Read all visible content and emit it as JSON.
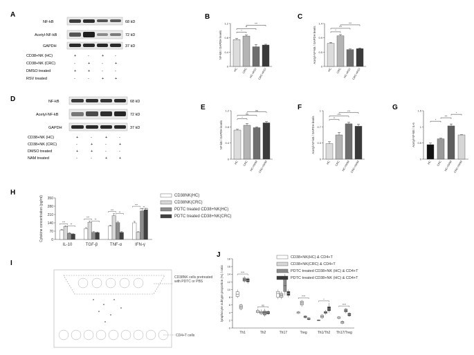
{
  "panels": {
    "A": "A",
    "B": "B",
    "C": "C",
    "D": "D",
    "E": "E",
    "F": "F",
    "G": "G",
    "H": "H",
    "I": "I",
    "J": "J"
  },
  "blot_A": {
    "bands": [
      {
        "label": "NF-kB",
        "kd": "68 kD"
      },
      {
        "label": "Acetyl-NF-kB",
        "kd": "72 kD"
      },
      {
        "label": "GAPDH",
        "kd": "37 kD"
      }
    ],
    "conditions": [
      {
        "label": "CD38+NK (HC)",
        "marks": [
          "+",
          "-",
          "+",
          "-"
        ]
      },
      {
        "label": "CD38+NK (CRC)",
        "marks": [
          "-",
          "+",
          "-",
          "+"
        ]
      },
      {
        "label": "DMSO treated",
        "marks": [
          "+",
          "+",
          "-",
          "-"
        ]
      },
      {
        "label": "RSV treated",
        "marks": [
          "-",
          "-",
          "+",
          "+"
        ]
      }
    ]
  },
  "blot_D": {
    "bands": [
      {
        "label": "NF-kB",
        "kd": "68 kD"
      },
      {
        "label": "Acetyl-NF-kB",
        "kd": "72 kD"
      },
      {
        "label": "GAPDH",
        "kd": "37 kD"
      }
    ],
    "conditions": [
      {
        "label": "CD38+NK (HC)",
        "marks": [
          "+",
          "-",
          "+",
          "-"
        ]
      },
      {
        "label": "CD38+NK (CRC)",
        "marks": [
          "-",
          "+",
          "-",
          "+"
        ]
      },
      {
        "label": "DMSO treated",
        "marks": [
          "+",
          "+",
          "-",
          "-"
        ]
      },
      {
        "label": "NAM treated",
        "marks": [
          "-",
          "-",
          "+",
          "+"
        ]
      }
    ]
  },
  "chart_data": [
    {
      "panel": "B",
      "type": "bar",
      "ylabel": "NF-kB / GAPDH levels",
      "categories": [
        "HC",
        "CRC",
        "HC+RSV",
        "CRC+RSV"
      ],
      "values": [
        0.75,
        0.85,
        0.55,
        0.6
      ],
      "errors": [
        0.03,
        0.03,
        0.06,
        0.02
      ],
      "colors": [
        "#dcdcdc",
        "#b4b4b4",
        "#6e6e6e",
        "#3a3a3a"
      ],
      "ylim": [
        0,
        1.2
      ],
      "sig": [
        {
          "from": 0,
          "to": 1,
          "label": "*"
        },
        {
          "from": 0,
          "to": 2,
          "label": "**"
        },
        {
          "from": 1,
          "to": 3,
          "label": "***"
        }
      ]
    },
    {
      "panel": "C",
      "type": "bar",
      "ylabel": "Acetyl-NF-kB / GAPDH levels",
      "categories": [
        "HC",
        "CRC",
        "HC+RSV",
        "CRC+RSV"
      ],
      "values": [
        0.75,
        1.0,
        0.55,
        0.58
      ],
      "errors": [
        0.03,
        0.04,
        0.02,
        0.02
      ],
      "colors": [
        "#dcdcdc",
        "#b4b4b4",
        "#6e6e6e",
        "#3a3a3a"
      ],
      "ylim": [
        0,
        1.4
      ],
      "sig": [
        {
          "from": 0,
          "to": 1,
          "label": "*"
        },
        {
          "from": 0,
          "to": 2,
          "label": "***"
        },
        {
          "from": 1,
          "to": 3,
          "label": "***"
        }
      ]
    },
    {
      "panel": "E",
      "type": "bar",
      "ylabel": "NF-kB / GAPDH levels",
      "categories": [
        "HC",
        "CRC",
        "HC+NAM",
        "CRC+NAM"
      ],
      "values": [
        0.72,
        0.84,
        0.78,
        0.9
      ],
      "errors": [
        0.02,
        0.04,
        0.02,
        0.03
      ],
      "colors": [
        "#dcdcdc",
        "#b4b4b4",
        "#6e6e6e",
        "#3a3a3a"
      ],
      "ylim": [
        0,
        1.2
      ],
      "sig": [
        {
          "from": 0,
          "to": 1,
          "label": "*"
        },
        {
          "from": 0,
          "to": 2,
          "label": "ns"
        },
        {
          "from": 1,
          "to": 3,
          "label": "ns"
        }
      ]
    },
    {
      "panel": "F",
      "type": "bar",
      "ylabel": "Acetyl-NF-kB / GAPDH levels",
      "categories": [
        "HC",
        "CRC",
        "HC+NAM",
        "CRC+NAM"
      ],
      "values": [
        0.32,
        0.5,
        0.73,
        0.68
      ],
      "errors": [
        0.04,
        0.05,
        0.03,
        0.04
      ],
      "colors": [
        "#dcdcdc",
        "#b4b4b4",
        "#6e6e6e",
        "#3a3a3a"
      ],
      "ylim": [
        0,
        1.0
      ],
      "sig": [
        {
          "from": 0,
          "to": 1,
          "label": "**"
        },
        {
          "from": 0,
          "to": 2,
          "label": "****"
        },
        {
          "from": 1,
          "to": 3,
          "label": "***"
        }
      ]
    },
    {
      "panel": "G",
      "type": "bar",
      "ylabel": "Acetyl-NF-kB / IL-6",
      "categories": [
        "HC",
        "CRC",
        "HC+NAM",
        "CRC+NAM"
      ],
      "values": [
        0.45,
        0.63,
        1.03,
        0.75
      ],
      "errors": [
        0.05,
        0.02,
        0.06,
        0.01
      ],
      "colors": [
        "#111111",
        "#9a9a9a",
        "#5e5e5e",
        "#d6d6d6"
      ],
      "ylim": [
        0,
        1.5
      ],
      "sig": [
        {
          "from": 0,
          "to": 1,
          "label": "*"
        },
        {
          "from": 1,
          "to": 2,
          "label": "***"
        },
        {
          "from": 2,
          "to": 3,
          "label": "*"
        }
      ]
    },
    {
      "panel": "H",
      "type": "bar",
      "ylabel": "Cytokine concentration (pg/ml)",
      "yticks": [
        "0",
        "70",
        "140",
        "210",
        "280",
        "350"
      ],
      "ylim": [
        0,
        350
      ],
      "categories": [
        "IL-10",
        "TGF-β",
        "TNF-α",
        "IFN-γ"
      ],
      "series": [
        {
          "name": "CD38NK(HC)",
          "color": "#ffffff",
          "values": [
            78,
            90,
            112,
            140
          ],
          "errors": [
            6,
            10,
            8,
            12
          ]
        },
        {
          "name": "CD38NK(CRC)",
          "color": "#d8d8d8",
          "values": [
            110,
            145,
            200,
            60
          ],
          "errors": [
            5,
            10,
            18,
            6
          ]
        },
        {
          "name": "PDTC treated CD38+NK(HC)",
          "color": "#8c8c8c",
          "values": [
            52,
            60,
            142,
            240
          ],
          "errors": [
            5,
            6,
            10,
            20
          ]
        },
        {
          "name": "PDTC treated CD38+NK(CRC)",
          "color": "#404040",
          "values": [
            45,
            58,
            60,
            250
          ],
          "errors": [
            4,
            5,
            6,
            12
          ]
        }
      ]
    },
    {
      "panel": "J",
      "type": "box",
      "ylabel": "lymphocyte subtype proportion (%) / ratio",
      "yticks": [
        "0",
        "2",
        "4",
        "6",
        "8",
        "10",
        "12",
        "14",
        "16",
        "18"
      ],
      "ylim": [
        0,
        18
      ],
      "categories": [
        "Th1",
        "Th2",
        "Th17",
        "Treg",
        "Th1/Th2",
        "Th17/Treg"
      ],
      "series": [
        {
          "name": "CD38+NK(HC) & CD4+T",
          "color": "#ffffff",
          "boxes": [
            [
              7.8,
              8.2,
              8.8,
              9.4,
              10.0
            ],
            [
              3.8,
              4.0,
              4.3,
              4.6,
              5.0
            ],
            [
              7.5,
              8.0,
              9.0,
              9.5,
              10.0
            ],
            [
              3.6,
              3.8,
              4.0,
              4.2,
              4.4
            ],
            [
              1.8,
              1.9,
              2.0,
              2.1,
              2.2
            ],
            [
              2.3,
              2.5,
              2.7,
              2.9,
              3.1
            ]
          ]
        },
        {
          "name": "CD38+NK(CRC) & CD4+T",
          "color": "#d8d8d8",
          "boxes": [
            [
              4.6,
              5.0,
              5.5,
              6.0,
              6.3
            ],
            [
              3.4,
              3.7,
              4.0,
              4.3,
              4.8
            ],
            [
              7.5,
              8.0,
              8.5,
              9.0,
              9.5
            ],
            [
              5.5,
              6.0,
              6.5,
              7.0,
              7.3
            ],
            [
              2.4,
              2.7,
              3.0,
              3.3,
              3.6
            ],
            [
              1.0,
              1.2,
              1.5,
              1.7,
              2.0
            ]
          ]
        },
        {
          "name": "PDTC treated CD38+NK (HC) & CD4+T",
          "color": "#8c8c8c",
          "boxes": [
            [
              11.8,
              12.2,
              12.5,
              13.0,
              13.5
            ],
            [
              3.0,
              3.4,
              4.0,
              4.4,
              5.0
            ],
            [
              8.5,
              9.5,
              11.0,
              12.8,
              14.0
            ],
            [
              2.5,
              2.7,
              2.9,
              3.1,
              3.3
            ],
            [
              3.5,
              3.8,
              4.0,
              4.3,
              4.7
            ],
            [
              3.8,
              4.2,
              4.5,
              4.9,
              5.2
            ]
          ]
        },
        {
          "name": "PDTC treated CD38+NK (HC) & CD4+T",
          "color": "#3a3a3a",
          "boxes": [
            [
              11.5,
              12.0,
              12.4,
              12.8,
              13.2
            ],
            [
              3.4,
              3.7,
              4.0,
              4.3,
              4.6
            ],
            [
              8.0,
              8.5,
              9.0,
              9.5,
              10.0
            ],
            [
              2.0,
              2.2,
              2.4,
              2.6,
              2.8
            ],
            [
              4.0,
              4.5,
              5.0,
              5.5,
              6.5
            ],
            [
              2.9,
              3.2,
              3.5,
              3.8,
              4.1
            ]
          ]
        }
      ],
      "sig": [
        "****",
        "ns",
        "n.s",
        "****",
        "*",
        "****"
      ]
    }
  ],
  "diagram_I": {
    "upper_label": "CD38NK cells pretreated with PDTC or PBS",
    "lower_label": "CD4+T cells"
  }
}
